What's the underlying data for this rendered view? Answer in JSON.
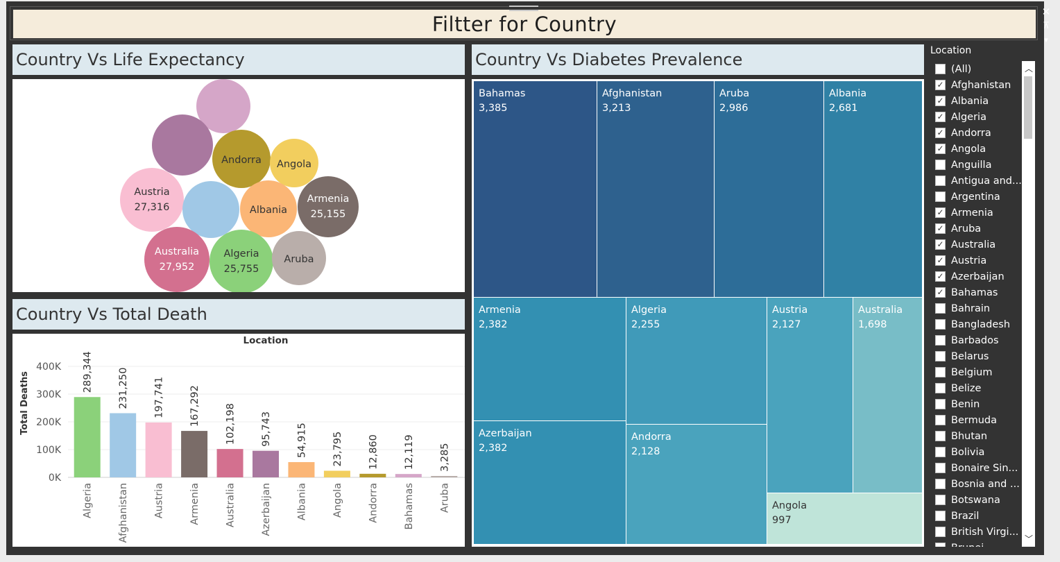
{
  "dashboard_title": "Filtter for Country",
  "window_controls": {
    "close": "✕",
    "pin": "⊼",
    "menu": "▾"
  },
  "life_expectancy": {
    "title": "Country Vs Life Expectancy",
    "bubbles": [
      {
        "name": "",
        "value": "",
        "color": "#d5a6c8"
      },
      {
        "name": "",
        "value": "",
        "color": "#a9789f"
      },
      {
        "name": "Andorra",
        "value": "",
        "color": "#b59a2d"
      },
      {
        "name": "Angola",
        "value": "",
        "color": "#f2ce5e"
      },
      {
        "name": "Austria",
        "value": "27,316",
        "color": "#f9bed2"
      },
      {
        "name": "",
        "value": "",
        "color": "#a0c8e6"
      },
      {
        "name": "Albania",
        "value": "",
        "color": "#fbb676"
      },
      {
        "name": "Armenia",
        "value": "25,155",
        "color": "#7a6c68"
      },
      {
        "name": "Australia",
        "value": "27,952",
        "color": "#d3708f"
      },
      {
        "name": "Algeria",
        "value": "25,755",
        "color": "#8bd17a"
      },
      {
        "name": "Aruba",
        "value": "",
        "color": "#b9aeaa"
      }
    ]
  },
  "total_death": {
    "title": "Country Vs Total Death",
    "header": "Location",
    "y_axis_label": "Total Deaths",
    "y_ticks": [
      "400K",
      "300K",
      "200K",
      "100K",
      "0K"
    ]
  },
  "diabetes": {
    "title": "Country Vs Diabetes Prevalence",
    "cells": [
      {
        "name": "Bahamas",
        "value": "3,385",
        "color": "#2d5687"
      },
      {
        "name": "Afghanistan",
        "value": "3,213",
        "color": "#2e618e"
      },
      {
        "name": "Aruba",
        "value": "2,986",
        "color": "#2d6d98"
      },
      {
        "name": "Albania",
        "value": "2,681",
        "color": "#3081a5"
      },
      {
        "name": "Armenia",
        "value": "2,382",
        "color": "#3390b2"
      },
      {
        "name": "Algeria",
        "value": "2,255",
        "color": "#409ab9"
      },
      {
        "name": "Austria",
        "value": "2,127",
        "color": "#4aa3bd"
      },
      {
        "name": "Australia",
        "value": "1,698",
        "color": "#78bdc7"
      },
      {
        "name": "Azerbaijan",
        "value": "2,382",
        "color": "#3390b2"
      },
      {
        "name": "Andorra",
        "value": "2,128",
        "color": "#4aa3bd"
      },
      {
        "name": "Angola",
        "value": "997",
        "color": "#bfe4d9"
      }
    ]
  },
  "filter": {
    "title": "Location",
    "items": [
      {
        "label": "(All)",
        "checked": false
      },
      {
        "label": "Afghanistan",
        "checked": true
      },
      {
        "label": "Albania",
        "checked": true
      },
      {
        "label": "Algeria",
        "checked": true
      },
      {
        "label": "Andorra",
        "checked": true
      },
      {
        "label": "Angola",
        "checked": true
      },
      {
        "label": "Anguilla",
        "checked": false
      },
      {
        "label": "Antigua and...",
        "checked": false
      },
      {
        "label": "Argentina",
        "checked": false
      },
      {
        "label": "Armenia",
        "checked": true
      },
      {
        "label": "Aruba",
        "checked": true
      },
      {
        "label": "Australia",
        "checked": true
      },
      {
        "label": "Austria",
        "checked": true
      },
      {
        "label": "Azerbaijan",
        "checked": true
      },
      {
        "label": "Bahamas",
        "checked": true
      },
      {
        "label": "Bahrain",
        "checked": false
      },
      {
        "label": "Bangladesh",
        "checked": false
      },
      {
        "label": "Barbados",
        "checked": false
      },
      {
        "label": "Belarus",
        "checked": false
      },
      {
        "label": "Belgium",
        "checked": false
      },
      {
        "label": "Belize",
        "checked": false
      },
      {
        "label": "Benin",
        "checked": false
      },
      {
        "label": "Bermuda",
        "checked": false
      },
      {
        "label": "Bhutan",
        "checked": false
      },
      {
        "label": "Bolivia",
        "checked": false
      },
      {
        "label": "Bonaire Sin...",
        "checked": false
      },
      {
        "label": "Bosnia and ...",
        "checked": false
      },
      {
        "label": "Botswana",
        "checked": false
      },
      {
        "label": "Brazil",
        "checked": false
      },
      {
        "label": "British Virgi...",
        "checked": false
      },
      {
        "label": "Brunei",
        "checked": false
      }
    ]
  },
  "chart_data": [
    {
      "type": "bar",
      "title": "Country Vs Total Death",
      "xlabel": "Location",
      "ylabel": "Total Deaths",
      "ylim": [
        0,
        450000
      ],
      "y_ticks": [
        0,
        100000,
        200000,
        300000,
        400000
      ],
      "categories": [
        "Algeria",
        "Afghanistan",
        "Austria",
        "Armenia",
        "Australia",
        "Azerbaijan",
        "Albania",
        "Angola",
        "Andorra",
        "Bahamas",
        "Aruba"
      ],
      "values": [
        289344,
        231250,
        197741,
        167292,
        102198,
        95743,
        54915,
        23795,
        12860,
        12119,
        3285
      ],
      "value_labels": [
        "289,344",
        "231,250",
        "197,741",
        "167,292",
        "102,198",
        "95,743",
        "54,915",
        "23,795",
        "12,860",
        "12,119",
        "3,285"
      ],
      "colors": [
        "#8bd17a",
        "#a0c8e6",
        "#f9bed2",
        "#7a6c68",
        "#d3708f",
        "#a9789f",
        "#fbb676",
        "#f2ce5e",
        "#b59a2d",
        "#d5a6c8",
        "#b9aeaa"
      ]
    },
    {
      "type": "treemap",
      "title": "Country Vs Diabetes Prevalence",
      "categories": [
        "Bahamas",
        "Afghanistan",
        "Aruba",
        "Albania",
        "Armenia",
        "Algeria",
        "Austria",
        "Australia",
        "Azerbaijan",
        "Andorra",
        "Angola"
      ],
      "values": [
        3385,
        3213,
        2986,
        2681,
        2382,
        2255,
        2127,
        1698,
        2382,
        2128,
        997
      ]
    }
  ]
}
